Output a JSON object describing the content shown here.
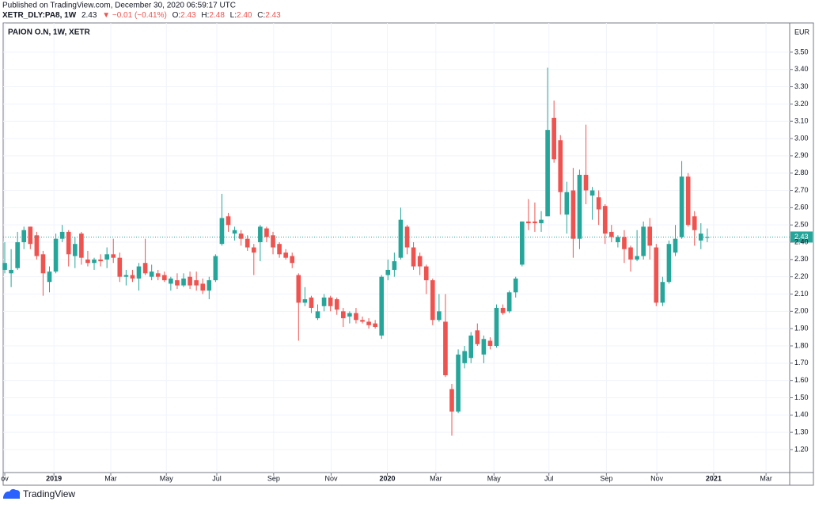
{
  "header": {
    "published": "Published on TradingView.com, December 30, 2020 06:59:17 UTC",
    "symbol": "XETR_DLY:PA8, 1W",
    "last": "2.43",
    "change": "▼ −0.01 (−0.41%)",
    "ohlc": [
      {
        "label": "O:",
        "value": "2.43"
      },
      {
        "label": "H:",
        "value": "2.48"
      },
      {
        "label": "L:",
        "value": "2.40"
      },
      {
        "label": "C:",
        "value": "2.43"
      }
    ]
  },
  "chart_data": {
    "type": "candlestick",
    "title": "PAION O.N, 1W, XETR",
    "currency": "EUR",
    "up_color": "#26a69a",
    "down_color": "#ef5350",
    "grid": true,
    "last_price": 2.43,
    "open": [
      2.24,
      2.22,
      2.25,
      2.4,
      2.49,
      2.44,
      2.33,
      2.17,
      2.23,
      2.42,
      2.46,
      2.32,
      2.45,
      2.3,
      2.28,
      2.3,
      2.3,
      2.33,
      2.31,
      2.2,
      2.21,
      2.19,
      2.28,
      2.2,
      2.22,
      2.21,
      2.16,
      2.18,
      2.15,
      2.2,
      2.18,
      2.16,
      2.12,
      2.18,
      2.39,
      2.55,
      2.45,
      2.45,
      2.42,
      2.37,
      2.4,
      2.48,
      2.44,
      2.39,
      2.34,
      2.32,
      2.21,
      2.05,
      2.08,
      1.96,
      2.03,
      2.08,
      2.07,
      2.0,
      1.97,
      1.99,
      1.95,
      1.94,
      1.93,
      1.86,
      2.21,
      2.24,
      2.31,
      2.49,
      2.37,
      2.32,
      2.26,
      2.18,
      1.95,
      1.94,
      1.55,
      1.42,
      1.7,
      1.73,
      1.89,
      1.75,
      1.83,
      1.8,
      2.02,
      2.0,
      2.11,
      2.27,
      2.52,
      2.52,
      2.51,
      2.55,
      3.12,
      2.99,
      2.56,
      2.7,
      2.42,
      2.79,
      2.67,
      2.66,
      2.61,
      2.46,
      2.4,
      2.43,
      2.37,
      2.3,
      2.32,
      2.49,
      2.37,
      2.05,
      2.17,
      2.34,
      2.43,
      2.78,
      2.55,
      2.41,
      2.43
    ],
    "high": [
      2.4,
      2.36,
      2.46,
      2.49,
      2.49,
      2.46,
      2.35,
      2.26,
      2.45,
      2.5,
      2.47,
      2.43,
      2.46,
      2.35,
      2.31,
      2.33,
      2.37,
      2.42,
      2.34,
      2.24,
      2.24,
      2.28,
      2.42,
      2.27,
      2.24,
      2.23,
      2.2,
      2.22,
      2.22,
      2.23,
      2.23,
      2.19,
      2.2,
      2.33,
      2.68,
      2.57,
      2.49,
      2.47,
      2.44,
      2.39,
      2.5,
      2.49,
      2.46,
      2.4,
      2.36,
      2.34,
      2.22,
      2.14,
      2.09,
      2.04,
      2.1,
      2.09,
      2.08,
      2.02,
      2.0,
      2.02,
      1.97,
      1.96,
      1.95,
      2.21,
      2.3,
      2.34,
      2.6,
      2.5,
      2.4,
      2.34,
      2.27,
      2.19,
      2.1,
      2.1,
      1.58,
      1.78,
      1.8,
      1.88,
      1.93,
      1.86,
      1.85,
      2.04,
      2.04,
      2.12,
      2.2,
      2.52,
      2.65,
      2.63,
      2.58,
      3.41,
      3.22,
      3.02,
      2.75,
      2.83,
      2.82,
      3.08,
      2.72,
      2.7,
      2.62,
      2.5,
      2.44,
      2.47,
      2.38,
      2.47,
      2.52,
      2.54,
      2.39,
      2.2,
      2.41,
      2.5,
      2.87,
      2.8,
      2.58,
      2.51,
      2.48
    ],
    "low": [
      2.22,
      2.14,
      2.24,
      2.36,
      2.36,
      2.3,
      2.09,
      2.11,
      2.22,
      2.4,
      2.26,
      2.25,
      2.27,
      2.26,
      2.24,
      2.26,
      2.25,
      2.28,
      2.17,
      2.15,
      2.17,
      2.12,
      2.21,
      2.18,
      2.18,
      2.17,
      2.12,
      2.13,
      2.14,
      2.13,
      2.12,
      2.1,
      2.07,
      2.17,
      2.38,
      2.46,
      2.41,
      2.38,
      2.35,
      2.21,
      2.29,
      2.4,
      2.33,
      2.31,
      2.3,
      2.25,
      1.83,
      2.03,
      1.99,
      1.95,
      2.0,
      2.0,
      1.98,
      1.91,
      1.93,
      1.93,
      1.93,
      1.9,
      1.9,
      1.84,
      2.18,
      2.2,
      2.3,
      2.33,
      2.24,
      2.21,
      2.1,
      1.92,
      1.94,
      1.62,
      1.28,
      1.41,
      1.67,
      1.7,
      1.8,
      1.7,
      1.78,
      1.79,
      1.98,
      1.99,
      2.08,
      2.26,
      2.47,
      2.46,
      2.46,
      2.55,
      2.86,
      2.56,
      2.45,
      2.31,
      2.36,
      2.62,
      2.53,
      2.5,
      2.39,
      2.4,
      2.37,
      2.28,
      2.23,
      2.29,
      2.3,
      2.3,
      2.03,
      2.03,
      2.16,
      2.32,
      2.42,
      2.49,
      2.38,
      2.36,
      2.4
    ],
    "close": [
      2.28,
      2.24,
      2.4,
      2.47,
      2.39,
      2.32,
      2.22,
      2.23,
      2.42,
      2.46,
      2.33,
      2.39,
      2.31,
      2.28,
      2.3,
      2.29,
      2.33,
      2.31,
      2.2,
      2.21,
      2.19,
      2.26,
      2.22,
      2.23,
      2.2,
      2.18,
      2.19,
      2.15,
      2.19,
      2.15,
      2.15,
      2.12,
      2.18,
      2.32,
      2.54,
      2.5,
      2.47,
      2.42,
      2.37,
      2.34,
      2.49,
      2.43,
      2.37,
      2.33,
      2.31,
      2.28,
      2.05,
      2.07,
      2.02,
      2.0,
      2.08,
      2.03,
      2.01,
      1.96,
      1.99,
      1.95,
      1.94,
      1.92,
      1.91,
      2.2,
      2.24,
      2.29,
      2.53,
      2.37,
      2.26,
      2.26,
      2.18,
      1.95,
      2.0,
      1.63,
      1.42,
      1.75,
      1.77,
      1.86,
      1.81,
      1.84,
      1.8,
      2.02,
      1.99,
      2.11,
      2.19,
      2.52,
      2.51,
      2.51,
      2.53,
      3.05,
      2.88,
      2.69,
      2.69,
      2.42,
      2.79,
      2.7,
      2.7,
      2.59,
      2.45,
      2.43,
      2.43,
      2.36,
      2.3,
      2.32,
      2.49,
      2.38,
      2.05,
      2.17,
      2.39,
      2.42,
      2.78,
      2.5,
      2.47,
      2.45,
      2.43
    ],
    "xlim": [
      -0.25,
      122.9
    ],
    "xticks": [
      {
        "value": 0,
        "label": "ov"
      },
      {
        "value": 7.7,
        "label": "2019"
      },
      {
        "value": 16.6,
        "label": "Mar"
      },
      {
        "value": 25.3,
        "label": "May"
      },
      {
        "value": 33.2,
        "label": "Jul"
      },
      {
        "value": 42.1,
        "label": "Sep"
      },
      {
        "value": 51.1,
        "label": "Nov"
      },
      {
        "value": 59.9,
        "label": "2020"
      },
      {
        "value": 67.5,
        "label": "Mar"
      },
      {
        "value": 76.6,
        "label": "May"
      },
      {
        "value": 85.2,
        "label": "Jul"
      },
      {
        "value": 94.2,
        "label": "Sep"
      },
      {
        "value": 102.1,
        "label": "Nov"
      },
      {
        "value": 111.0,
        "label": "2021"
      },
      {
        "value": 119.2,
        "label": "Mar"
      }
    ],
    "ylim": [
      1.067,
      3.669
    ],
    "yticks": [
      {
        "value": 1.2,
        "label": "1.20"
      },
      {
        "value": 1.3,
        "label": "1.30"
      },
      {
        "value": 1.4,
        "label": "1.40"
      },
      {
        "value": 1.5,
        "label": "1.50"
      },
      {
        "value": 1.6,
        "label": "1.60"
      },
      {
        "value": 1.7,
        "label": "1.70"
      },
      {
        "value": 1.8,
        "label": "1.80"
      },
      {
        "value": 1.9,
        "label": "1.90"
      },
      {
        "value": 2.0,
        "label": "2.00"
      },
      {
        "value": 2.1,
        "label": "2.10"
      },
      {
        "value": 2.2,
        "label": "2.20"
      },
      {
        "value": 2.3,
        "label": "2.30"
      },
      {
        "value": 2.4,
        "label": "2.40"
      },
      {
        "value": 2.5,
        "label": "2.50"
      },
      {
        "value": 2.6,
        "label": "2.60"
      },
      {
        "value": 2.7,
        "label": "2.70"
      },
      {
        "value": 2.8,
        "label": "2.80"
      },
      {
        "value": 2.9,
        "label": "2.90"
      },
      {
        "value": 3.0,
        "label": "3.00"
      },
      {
        "value": 3.1,
        "label": "3.10"
      },
      {
        "value": 3.2,
        "label": "3.20"
      },
      {
        "value": 3.3,
        "label": "3.30"
      },
      {
        "value": 3.4,
        "label": "3.40"
      },
      {
        "value": 3.5,
        "label": "3.50"
      }
    ]
  },
  "footer": {
    "brand": "TradingView"
  }
}
